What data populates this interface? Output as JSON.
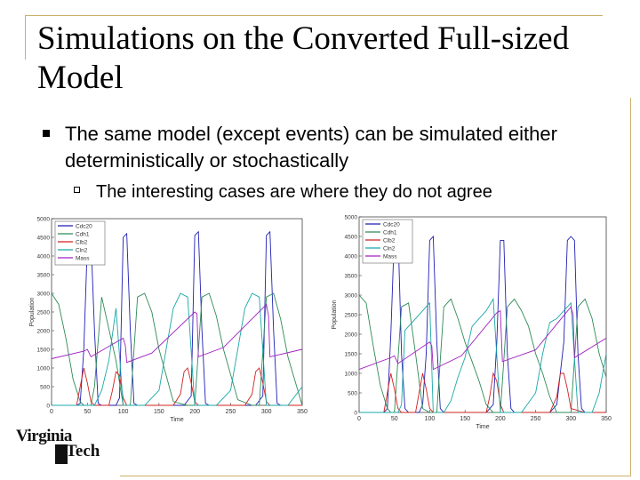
{
  "slide": {
    "title": "Simulations on the Converted Full-sized Model",
    "bullet": "The same model (except events) can be simulated either deterministically or stochastically",
    "sub_bullet": "The interesting cases are where they do not agree"
  },
  "logo": {
    "line1": "Virginia",
    "line2": "Tech"
  },
  "colors": {
    "frame": "#c9b06a",
    "Cdc20": "#1f1fb4",
    "Cdh1": "#2e8b57",
    "Clb2": "#d22020",
    "Cln2": "#19a7a7",
    "Mass": "#a020c0"
  },
  "chart_data": [
    {
      "type": "line",
      "xlabel": "Time",
      "ylabel": "Population",
      "xlim": [
        0,
        350
      ],
      "ylim": [
        0,
        5000
      ],
      "xticks": [
        0,
        50,
        100,
        150,
        200,
        250,
        300,
        350
      ],
      "yticks": [
        0,
        500,
        1000,
        1500,
        2000,
        2500,
        3000,
        3500,
        4000,
        4500,
        5000
      ],
      "legend": [
        "Cdc20",
        "Cdh1",
        "Clb2",
        "Cln2",
        "Mass"
      ],
      "legend_position": "top-left",
      "series": [
        {
          "name": "Cdc20",
          "x": [
            0,
            10,
            25,
            35,
            40,
            45,
            50,
            55,
            60,
            65,
            70,
            80,
            90,
            95,
            100,
            105,
            110,
            115,
            120,
            130,
            150,
            170,
            185,
            195,
            200,
            205,
            210,
            215,
            220,
            230,
            250,
            270,
            285,
            295,
            300,
            305,
            310,
            315,
            320,
            330,
            350
          ],
          "y": [
            0,
            0,
            0,
            0,
            50,
            1500,
            4350,
            4500,
            2000,
            50,
            0,
            0,
            0,
            200,
            4500,
            4600,
            2000,
            50,
            0,
            0,
            0,
            0,
            0,
            250,
            4550,
            4650,
            2000,
            50,
            0,
            0,
            0,
            0,
            0,
            250,
            4550,
            4650,
            2000,
            50,
            0,
            0,
            0
          ]
        },
        {
          "name": "Cdh1",
          "x": [
            0,
            10,
            20,
            30,
            40,
            45,
            50,
            55,
            60,
            70,
            90,
            100,
            110,
            120,
            130,
            140,
            150,
            170,
            190,
            200,
            210,
            220,
            230,
            240,
            260,
            280,
            290,
            300,
            310,
            320,
            330,
            350
          ],
          "y": [
            3000,
            2700,
            1800,
            700,
            100,
            0,
            0,
            0,
            500,
            2900,
            1200,
            0,
            0,
            2900,
            3000,
            2500,
            1500,
            100,
            0,
            0,
            2900,
            3000,
            2400,
            1500,
            150,
            0,
            0,
            2900,
            3000,
            2300,
            1300,
            0
          ]
        },
        {
          "name": "Clb2",
          "x": [
            0,
            20,
            35,
            40,
            45,
            50,
            55,
            60,
            80,
            85,
            90,
            95,
            100,
            105,
            120,
            170,
            180,
            185,
            190,
            195,
            200,
            205,
            220,
            270,
            280,
            285,
            290,
            295,
            300,
            305,
            320,
            350
          ],
          "y": [
            0,
            0,
            0,
            500,
            1000,
            600,
            100,
            0,
            0,
            400,
            900,
            800,
            200,
            0,
            0,
            0,
            300,
            900,
            1000,
            600,
            100,
            0,
            0,
            0,
            300,
            900,
            1000,
            600,
            100,
            0,
            0,
            0
          ]
        },
        {
          "name": "Cln2",
          "x": [
            0,
            40,
            60,
            70,
            80,
            90,
            100,
            110,
            130,
            150,
            160,
            170,
            180,
            190,
            200,
            210,
            230,
            250,
            260,
            270,
            280,
            290,
            300,
            310,
            330,
            350
          ],
          "y": [
            0,
            0,
            0,
            400,
            1200,
            2600,
            0,
            0,
            0,
            400,
            1500,
            2600,
            3000,
            2900,
            0,
            0,
            0,
            400,
            1500,
            2600,
            3000,
            2900,
            0,
            0,
            0,
            500
          ]
        },
        {
          "name": "Mass",
          "x": [
            0,
            45,
            50,
            55,
            100,
            103,
            105,
            140,
            200,
            203,
            205,
            240,
            300,
            303,
            305,
            350
          ],
          "y": [
            1250,
            1450,
            1500,
            1300,
            1800,
            1600,
            1150,
            1400,
            2500,
            2450,
            1300,
            1550,
            2700,
            2400,
            1300,
            1500
          ]
        }
      ]
    },
    {
      "type": "line",
      "xlabel": "Time",
      "ylabel": "Population",
      "xlim": [
        0,
        350
      ],
      "ylim": [
        0,
        5000
      ],
      "xticks": [
        0,
        50,
        100,
        150,
        200,
        250,
        300,
        350
      ],
      "yticks": [
        0,
        500,
        1000,
        1500,
        2000,
        2500,
        3000,
        3500,
        4000,
        4500,
        5000
      ],
      "legend": [
        "Cdc20",
        "Cdh1",
        "Clb2",
        "Cln2",
        "Mass"
      ],
      "legend_position": "top-left",
      "series": [
        {
          "name": "Cdc20",
          "x": [
            0,
            35,
            40,
            45,
            50,
            55,
            60,
            65,
            70,
            85,
            90,
            95,
            100,
            105,
            110,
            115,
            120,
            180,
            190,
            195,
            200,
            205,
            210,
            215,
            220,
            270,
            280,
            290,
            295,
            300,
            305,
            310,
            315,
            320,
            350
          ],
          "y": [
            0,
            0,
            100,
            2000,
            4600,
            4700,
            1500,
            100,
            0,
            0,
            200,
            1500,
            4400,
            4500,
            1800,
            100,
            0,
            0,
            200,
            1800,
            4400,
            4400,
            1500,
            100,
            0,
            0,
            200,
            1800,
            4400,
            4500,
            4400,
            1500,
            100,
            0,
            0
          ]
        },
        {
          "name": "Cdh1",
          "x": [
            0,
            10,
            20,
            30,
            40,
            45,
            50,
            60,
            70,
            80,
            90,
            100,
            110,
            120,
            130,
            140,
            150,
            160,
            170,
            180,
            190,
            200,
            210,
            220,
            230,
            240,
            250,
            260,
            270,
            280,
            290,
            300,
            310,
            320,
            330,
            340,
            350
          ],
          "y": [
            3000,
            2800,
            1700,
            700,
            100,
            0,
            0,
            2700,
            2800,
            1500,
            100,
            0,
            0,
            2700,
            2900,
            2400,
            1800,
            1300,
            800,
            200,
            0,
            0,
            2700,
            2900,
            2600,
            2200,
            1500,
            1000,
            400,
            0,
            0,
            0,
            2700,
            2900,
            2400,
            1500,
            900
          ]
        },
        {
          "name": "Clb2",
          "x": [
            0,
            35,
            40,
            45,
            50,
            55,
            60,
            80,
            85,
            90,
            95,
            100,
            105,
            120,
            180,
            185,
            190,
            195,
            200,
            205,
            220,
            270,
            280,
            285,
            290,
            295,
            300,
            320,
            350
          ],
          "y": [
            0,
            0,
            500,
            1000,
            600,
            100,
            0,
            0,
            500,
            1000,
            600,
            100,
            0,
            0,
            0,
            400,
            1000,
            800,
            200,
            0,
            0,
            0,
            400,
            1000,
            1000,
            600,
            100,
            0,
            0
          ]
        },
        {
          "name": "Cln2",
          "x": [
            0,
            55,
            60,
            65,
            75,
            90,
            100,
            105,
            110,
            120,
            130,
            140,
            150,
            160,
            170,
            180,
            190,
            200,
            210,
            230,
            250,
            260,
            270,
            280,
            290,
            300,
            310,
            330,
            340,
            350
          ],
          "y": [
            0,
            0,
            200,
            2100,
            2300,
            2600,
            2800,
            0,
            0,
            0,
            300,
            900,
            1400,
            2200,
            2400,
            2600,
            2900,
            0,
            0,
            0,
            500,
            1500,
            2300,
            2400,
            2600,
            2800,
            0,
            0,
            500,
            1500
          ]
        },
        {
          "name": "Mass",
          "x": [
            0,
            45,
            50,
            55,
            100,
            103,
            105,
            145,
            195,
            200,
            203,
            250,
            300,
            303,
            305,
            350
          ],
          "y": [
            1100,
            1400,
            1450,
            1250,
            1800,
            1700,
            1100,
            1450,
            2550,
            2600,
            1300,
            1600,
            2700,
            2500,
            1400,
            1900
          ]
        }
      ]
    }
  ]
}
